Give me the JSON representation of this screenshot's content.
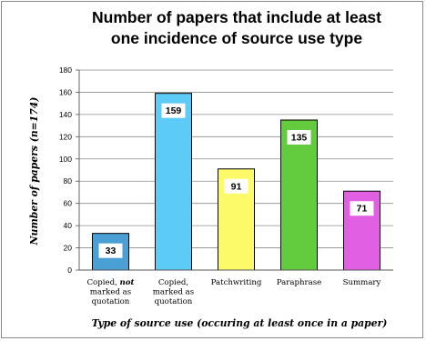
{
  "chart_data": {
    "type": "bar",
    "title_lines": [
      "Number of papers that include at least",
      "one incidence of source use type"
    ],
    "ylabel": "Number of papers (n=174)",
    "xlabel": "Type of source use (occuring at least once in a paper)",
    "ylim": [
      0,
      180
    ],
    "yticks": [
      0,
      20,
      40,
      60,
      80,
      100,
      120,
      140,
      160,
      180
    ],
    "grid": true,
    "categories": [
      {
        "lines": [
          [
            {
              "text": "Copied, "
            },
            {
              "text": "not",
              "style": "bold-italic"
            }
          ],
          [
            {
              "text": "marked as"
            }
          ],
          [
            {
              "text": "quotation"
            }
          ]
        ]
      },
      {
        "lines": [
          [
            {
              "text": "Copied,"
            }
          ],
          [
            {
              "text": "marked as"
            }
          ],
          [
            {
              "text": "quotation"
            }
          ]
        ]
      },
      {
        "lines": [
          [
            {
              "text": "Patchwriting"
            }
          ]
        ]
      },
      {
        "lines": [
          [
            {
              "text": "Paraphrase"
            }
          ]
        ]
      },
      {
        "lines": [
          [
            {
              "text": "Summary"
            }
          ]
        ]
      }
    ],
    "values": [
      33,
      159,
      91,
      135,
      71
    ],
    "data_labels": [
      "33",
      "159",
      "91",
      "135",
      "71"
    ],
    "colors": [
      "#4a9fd4",
      "#5ccbf5",
      "#fdfa6a",
      "#63cb3e",
      "#e05fe3"
    ]
  }
}
